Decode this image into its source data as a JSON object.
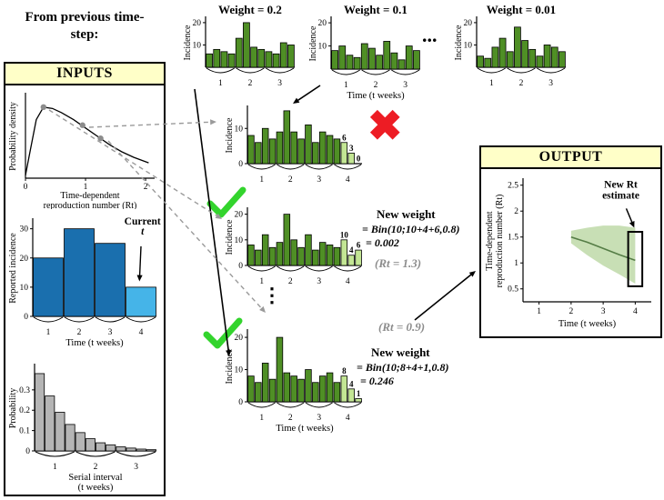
{
  "from_previous": "From previous time-step:",
  "inputs": {
    "title": "INPUTS"
  },
  "output": {
    "title": "OUTPUT"
  },
  "top_row": {
    "ellipsis": "..."
  },
  "middle": {
    "vdots": "⋮"
  },
  "icons": {
    "reject": "✖"
  },
  "colors": {
    "header_bg": "#ffffc8",
    "accept": "#33d42d",
    "reject": "#ed1c24",
    "dark_green": "#4f8f25",
    "light_green": "#c3e694",
    "dark_blue": "#1a6fae",
    "light_blue": "#45b4e8",
    "gray_bar": "#b5b5b5",
    "band_green": "#b5d49c",
    "dashed_arrow": "#9a9a9a"
  },
  "annotations": {
    "e_line1": "New weight",
    "e_line2": "= Bin(10;10+4+6,0.8)",
    "e_line3": "= 0.002",
    "e_rt": "(Rt = 1.3)",
    "f_rt": "(Rt = 0.9)",
    "f_line1": "New weight",
    "f_line2": "= Bin(10;8+4+1,0.8)",
    "f_line3": "= 0.246"
  },
  "chart_data": [
    {
      "id": "weight-chart-1",
      "type": "bar",
      "title": "Weight = 0.2",
      "ylabel": "Incidence",
      "yticks": [
        10,
        20
      ],
      "ylim": [
        0,
        22
      ],
      "values": [
        6,
        8,
        7,
        6,
        13,
        20,
        9,
        8,
        7,
        6,
        11,
        10
      ],
      "group_size": 4,
      "xticks": [
        "1",
        "2",
        "3"
      ],
      "bar_color": "#4f8f25",
      "bar_width": 0.85,
      "pad": {
        "l": 26,
        "t": 16,
        "r": 4,
        "b": 26
      }
    },
    {
      "id": "weight-chart-2",
      "type": "bar",
      "title": "Weight = 0.1",
      "ylabel": "Incidence",
      "yticks": [
        10,
        20
      ],
      "ylim": [
        0,
        22
      ],
      "values": [
        8,
        10,
        6,
        5,
        11,
        9,
        6,
        12,
        7,
        4,
        10,
        8
      ],
      "group_size": 4,
      "xticks": [
        "1",
        "2",
        "3"
      ],
      "xlabel": "Time (t weeks)",
      "bar_color": "#4f8f25",
      "bar_width": 0.85,
      "pad": {
        "l": 26,
        "t": 16,
        "r": 4,
        "b": 38
      }
    },
    {
      "id": "weight-chart-3",
      "type": "bar",
      "title": "Weight = 0.01",
      "ylabel": "Incidence",
      "yticks": [
        10,
        20
      ],
      "ylim": [
        0,
        22
      ],
      "values": [
        5,
        4,
        9,
        13,
        7,
        18,
        12,
        8,
        5,
        10,
        9,
        7
      ],
      "group_size": 4,
      "xticks": [
        "1",
        "2",
        "3"
      ],
      "bar_color": "#4f8f25",
      "bar_width": 0.85,
      "pad": {
        "l": 26,
        "t": 16,
        "r": 4,
        "b": 26
      }
    },
    {
      "id": "particle-rejected",
      "type": "bar",
      "ylabel": "Incidence",
      "yticks": [
        0,
        10
      ],
      "ylim": [
        0,
        16
      ],
      "values": [
        8,
        6,
        10,
        7,
        9,
        15,
        9,
        7,
        11,
        6,
        9,
        8,
        7,
        6,
        3,
        0
      ],
      "light_from": 13,
      "bar_labels": {
        "13": "6",
        "14": "3",
        "15": "0"
      },
      "group_size": 4,
      "xticks": [
        "1",
        "2",
        "3",
        "4"
      ],
      "bar_color": "#4f8f25",
      "light_color": "#c3e694",
      "bar_width": 0.85,
      "pad": {
        "l": 26,
        "t": 12,
        "r": 6,
        "b": 26
      }
    },
    {
      "id": "particle-2",
      "type": "bar",
      "ylabel": "Incidence",
      "yticks": [
        0,
        10,
        20
      ],
      "ylim": [
        0,
        22
      ],
      "values": [
        8,
        6,
        12,
        7,
        9,
        20,
        10,
        7,
        12,
        6,
        9,
        8,
        7,
        10,
        4,
        6
      ],
      "light_from": 13,
      "bar_labels": {
        "13": "10",
        "14": "4",
        "15": "6"
      },
      "group_size": 4,
      "xticks": [
        "1",
        "2",
        "3",
        "4"
      ],
      "bar_color": "#4f8f25",
      "light_color": "#c3e694",
      "bar_width": 0.85,
      "pad": {
        "l": 26,
        "t": 12,
        "r": 6,
        "b": 26
      }
    },
    {
      "id": "particle-3",
      "type": "bar",
      "ylabel": "Incidence",
      "yticks": [
        0,
        10,
        20
      ],
      "ylim": [
        0,
        22
      ],
      "values": [
        8,
        6,
        12,
        7,
        20,
        9,
        8,
        7,
        10,
        6,
        8,
        9,
        6,
        8,
        4,
        1
      ],
      "light_from": 13,
      "bar_labels": {
        "13": "8",
        "14": "4",
        "15": "1"
      },
      "group_size": 4,
      "xticks": [
        "1",
        "2",
        "3",
        "4"
      ],
      "xlabel": "Time (t weeks)",
      "bar_color": "#4f8f25",
      "light_color": "#c3e694",
      "bar_width": 0.85,
      "pad": {
        "l": 26,
        "t": 12,
        "r": 6,
        "b": 42
      }
    },
    {
      "id": "density",
      "type": "curve",
      "ylabel": "Probability density",
      "xlabel_lines": [
        "Time-dependent",
        "reproduction number (Rt)"
      ],
      "xlim": [
        0,
        2.15
      ],
      "ylim": [
        0,
        0.3
      ],
      "xticks": [
        0,
        1,
        2
      ],
      "points": [
        [
          0,
          0.01
        ],
        [
          0.08,
          0.1
        ],
        [
          0.18,
          0.21
        ],
        [
          0.3,
          0.255
        ],
        [
          0.45,
          0.25
        ],
        [
          0.6,
          0.235
        ],
        [
          0.8,
          0.21
        ],
        [
          1.0,
          0.18
        ],
        [
          1.2,
          0.15
        ],
        [
          1.4,
          0.12
        ],
        [
          1.6,
          0.095
        ],
        [
          1.8,
          0.075
        ],
        [
          2.05,
          0.055
        ]
      ],
      "dots": [
        [
          0.3,
          0.255
        ],
        [
          0.95,
          0.19
        ],
        [
          1.25,
          0.143
        ]
      ],
      "dot_color": "#8c8c8c",
      "pad": {
        "l": 20,
        "t": 6,
        "r": 8,
        "b": 34
      }
    },
    {
      "id": "reported-incidence",
      "type": "bar",
      "ylabel": "Reported incidence",
      "yticks": [
        0,
        10,
        20,
        30
      ],
      "ylim": [
        0,
        33
      ],
      "values": [
        20,
        30,
        25,
        10
      ],
      "light_from": 3,
      "group_size": 1,
      "xticks": [
        "1",
        "2",
        "3",
        "4"
      ],
      "xlabel": "Time (t weeks)",
      "bar_color": "#1a6fae",
      "light_color": "#45b4e8",
      "bar_width": 0.97,
      "note": {
        "lines": [
          "Current",
          "t"
        ],
        "ic": 3.05,
        "v": 31.5,
        "it_last": true,
        "arrow": {
          "ic1": 3.0,
          "v1": 24.0,
          "ic2": 2.95,
          "v2": 12.0
        }
      },
      "pad": {
        "l": 28,
        "t": 8,
        "r": 6,
        "b": 44
      }
    },
    {
      "id": "serial-interval",
      "type": "bar",
      "ylabel": "Probability",
      "yticks": [
        0,
        0.1,
        0.2,
        0.3
      ],
      "ylim": [
        0,
        0.42
      ],
      "values": [
        0.38,
        0.27,
        0.19,
        0.13,
        0.09,
        0.06,
        0.04,
        0.03,
        0.02,
        0.014,
        0.009,
        0.006
      ],
      "group_size": 4,
      "xticks": [
        "1",
        "2",
        "3"
      ],
      "xlabel_lines": [
        "Serial interval",
        "(t weeks)"
      ],
      "bar_color": "#b5b5b5",
      "bar_width": 0.92,
      "pad": {
        "l": 30,
        "t": 6,
        "r": 6,
        "b": 46
      }
    },
    {
      "id": "output-chart",
      "type": "line_band",
      "ylabel_lines": [
        "Time-dependent",
        "reproduction number (Rt)"
      ],
      "xlabel": "Time (t weeks)",
      "yticks": [
        0.5,
        1,
        1.5,
        2,
        2.5
      ],
      "ylim": [
        0.25,
        2.6
      ],
      "xticks": [
        1,
        2,
        3,
        4
      ],
      "xlim": [
        0.5,
        4.5
      ],
      "x": [
        2,
        2.5,
        3,
        3.5,
        4
      ],
      "median": [
        1.5,
        1.4,
        1.28,
        1.16,
        1.05
      ],
      "upper": [
        1.62,
        1.68,
        1.72,
        1.72,
        1.68
      ],
      "lower": [
        1.38,
        1.15,
        0.95,
        0.78,
        0.6
      ],
      "line_color": "#557d46",
      "band_color": "#b5d49c",
      "highlight": {
        "x0": 3.78,
        "x1": 4.22,
        "y0": 0.55,
        "y1": 1.6
      },
      "note": {
        "lines": [
          "New Rt",
          "estimate"
        ],
        "x": 3.55,
        "y": 2.45,
        "arrow": {
          "x1": 3.72,
          "y1": 2.05,
          "x2": 3.97,
          "y2": 1.68
        }
      },
      "pad": {
        "l": 44,
        "t": 8,
        "r": 8,
        "b": 36
      }
    }
  ]
}
